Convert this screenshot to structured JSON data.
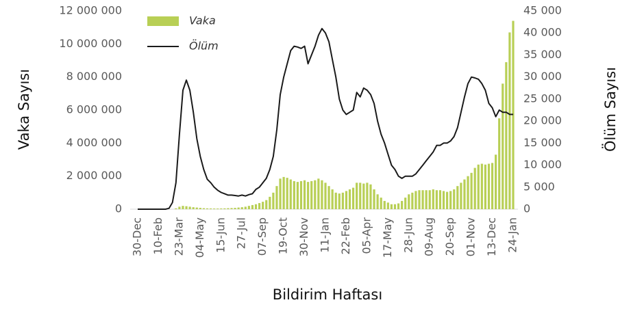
{
  "chart_data": {
    "type": "bar_line",
    "x_label": "Bildirim Haftası",
    "y_label": "Vaka Sayısı",
    "y2_label": "Ölüm Sayısı",
    "categories": [
      "30-Dec",
      null,
      null,
      null,
      null,
      null,
      "10-Feb",
      null,
      null,
      null,
      null,
      null,
      "23-Mar",
      null,
      null,
      null,
      null,
      null,
      "04-May",
      null,
      null,
      null,
      null,
      null,
      "15-Jun",
      null,
      null,
      null,
      null,
      null,
      "27-Jul",
      null,
      null,
      null,
      null,
      null,
      "07-Sep",
      null,
      null,
      null,
      null,
      null,
      "19-Oct",
      null,
      null,
      null,
      null,
      null,
      "30-Nov",
      null,
      null,
      null,
      null,
      null,
      "11-Jan",
      null,
      null,
      null,
      null,
      null,
      "22-Feb",
      null,
      null,
      null,
      null,
      null,
      "05-Apr",
      null,
      null,
      null,
      null,
      null,
      "17-May",
      null,
      null,
      null,
      null,
      null,
      "28-Jun",
      null,
      null,
      null,
      null,
      null,
      "09-Aug",
      null,
      null,
      null,
      null,
      null,
      "20-Sep",
      null,
      null,
      null,
      null,
      null,
      "01-Nov",
      null,
      null,
      null,
      null,
      null,
      "13-Dec",
      null,
      null,
      null,
      null,
      null,
      "24-Jan"
    ],
    "series": [
      {
        "name": "Vaka",
        "type": "bar",
        "color": "#b8cf55",
        "values": [
          0,
          0,
          0,
          0,
          0,
          0,
          0,
          0,
          0,
          0,
          0,
          50000,
          150000,
          200000,
          180000,
          150000,
          120000,
          100000,
          80000,
          60000,
          50000,
          45000,
          40000,
          40000,
          45000,
          50000,
          60000,
          70000,
          80000,
          100000,
          120000,
          150000,
          200000,
          250000,
          300000,
          370000,
          450000,
          550000,
          750000,
          1000000,
          1400000,
          1850000,
          1950000,
          1900000,
          1800000,
          1700000,
          1650000,
          1700000,
          1750000,
          1650000,
          1700000,
          1750000,
          1850000,
          1750000,
          1600000,
          1400000,
          1200000,
          1000000,
          950000,
          1000000,
          1100000,
          1200000,
          1300000,
          1600000,
          1600000,
          1550000,
          1600000,
          1500000,
          1200000,
          900000,
          700000,
          500000,
          400000,
          300000,
          300000,
          350000,
          500000,
          700000,
          900000,
          1000000,
          1100000,
          1150000,
          1150000,
          1150000,
          1150000,
          1200000,
          1150000,
          1150000,
          1100000,
          1050000,
          1100000,
          1200000,
          1400000,
          1600000,
          1800000,
          2000000,
          2200000,
          2500000,
          2700000,
          2750000,
          2700000,
          2750000,
          2800000,
          3300000,
          5500000,
          7600000,
          8900000,
          10700000,
          11400000
        ]
      },
      {
        "name": "Ölüm",
        "type": "line",
        "axis": "y2",
        "color": "#1a1a1a",
        "values": [
          0,
          0,
          0,
          0,
          0,
          0,
          0,
          0,
          0,
          200,
          1500,
          6000,
          17000,
          27000,
          29300,
          27000,
          22000,
          16000,
          12000,
          9000,
          6800,
          6000,
          5000,
          4300,
          3800,
          3500,
          3200,
          3200,
          3100,
          3000,
          3200,
          3000,
          3300,
          3500,
          4500,
          5000,
          6000,
          7000,
          9000,
          12000,
          18000,
          26000,
          30000,
          33000,
          36000,
          37000,
          36800,
          36500,
          37000,
          33000,
          35000,
          37000,
          39500,
          41000,
          40000,
          38000,
          34000,
          30000,
          25000,
          22500,
          21500,
          22000,
          22500,
          26500,
          25500,
          27500,
          27000,
          26000,
          24000,
          20000,
          17000,
          15000,
          12500,
          10000,
          9000,
          7500,
          7000,
          7500,
          7500,
          7500,
          8000,
          9000,
          10000,
          11000,
          12000,
          13000,
          14500,
          14500,
          15000,
          15000,
          15500,
          16500,
          18500,
          22000,
          25500,
          28500,
          30000,
          29800,
          29500,
          28500,
          27000,
          24000,
          23000,
          21000,
          22500,
          22000,
          22000,
          21500,
          21500
        ]
      }
    ],
    "ylim": [
      0,
      12000000
    ],
    "yticks": [
      0,
      {
        "value": 2000000,
        "label": "2 000 000"
      },
      {
        "value": 4000000,
        "label": "4 000 000"
      },
      {
        "value": 6000000,
        "label": "6 000 000"
      },
      {
        "value": 8000000,
        "label": "8 000 000"
      },
      {
        "value": 10000000,
        "label": "10 000 000"
      },
      {
        "value": 12000000,
        "label": "12 000 000"
      }
    ],
    "y2lim": [
      0,
      45000
    ],
    "y2ticks": [
      0,
      {
        "value": 5000,
        "label": "5 000"
      },
      {
        "value": 10000,
        "label": "10 000"
      },
      {
        "value": 15000,
        "label": "15 000"
      },
      {
        "value": 20000,
        "label": "20 000"
      },
      {
        "value": 25000,
        "label": "25 000"
      },
      {
        "value": 30000,
        "label": "30 000"
      },
      {
        "value": 35000,
        "label": "35 000"
      },
      {
        "value": 40000,
        "label": "40 000"
      },
      {
        "value": 45000,
        "label": "45 000"
      }
    ],
    "legend": "top-left"
  }
}
